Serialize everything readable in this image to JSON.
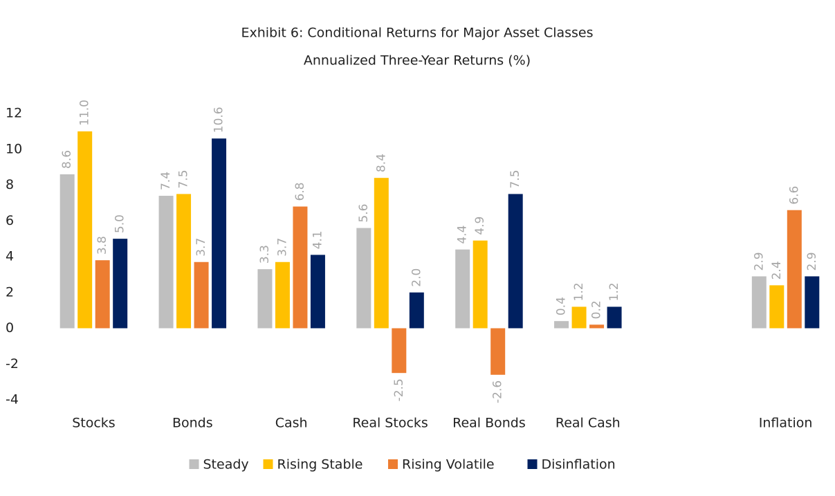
{
  "chart_data": {
    "type": "bar",
    "title": "Exhibit 6: Conditional Returns for Major Asset Classes",
    "subtitle": "Annualized Three-Year Returns (%)",
    "categories": [
      "Stocks",
      "Bonds",
      "Cash",
      "Real Stocks",
      "Real Bonds",
      "Real Cash",
      null,
      "Inflation"
    ],
    "series": [
      {
        "name": "Steady",
        "color": "#bfbfbf",
        "values": [
          8.6,
          7.4,
          3.3,
          5.6,
          4.4,
          0.4,
          null,
          2.9
        ],
        "value_labels": [
          "8.6",
          "7.4",
          "3.3",
          "5.6",
          "4.4",
          "0.4",
          null,
          "2.9"
        ]
      },
      {
        "name": "Rising Stable",
        "color": "#ffc000",
        "values": [
          11.0,
          7.5,
          3.7,
          8.4,
          4.9,
          1.2,
          null,
          2.4
        ],
        "value_labels": [
          "11.0",
          "7.5",
          "3.7",
          "8.4",
          "4.9",
          "1.2",
          null,
          "2.4"
        ]
      },
      {
        "name": "Rising Volatile",
        "color": "#ed7d31",
        "values": [
          3.8,
          3.7,
          6.8,
          -2.5,
          -2.6,
          0.2,
          null,
          6.6
        ],
        "value_labels": [
          "3.8",
          "3.7",
          "6.8",
          "-2.5",
          "-2.6",
          "0.2",
          null,
          "6.6"
        ]
      },
      {
        "name": "Disinflation",
        "color": "#002060",
        "values": [
          5.0,
          10.6,
          4.1,
          2.0,
          7.5,
          1.2,
          null,
          2.9
        ],
        "value_labels": [
          "5.0",
          "10.6",
          "4.1",
          "2.0",
          "7.5",
          "1.2",
          null,
          "2.9"
        ]
      }
    ],
    "ylim": [
      -4,
      12
    ],
    "yticks": [
      -4,
      -2,
      0,
      2,
      4,
      6,
      8,
      10,
      12
    ],
    "grid": false,
    "legend": "bottom"
  }
}
